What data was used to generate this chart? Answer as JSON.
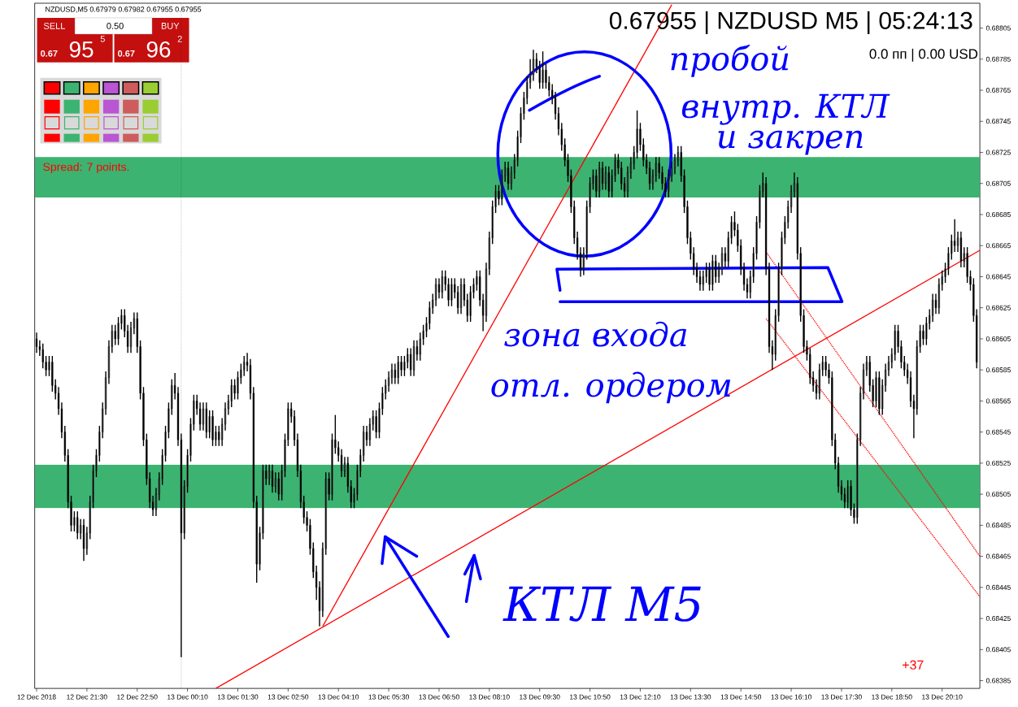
{
  "chart_data": {
    "type": "candlestick",
    "title": "0.67955 | NZDUSD M5 | 05:24:13",
    "annotations": [
      "NZDUSD,M5  0.67979 0.67982 0.67955 0.67955",
      "SELL",
      "0.50",
      "BUY",
      "0.67",
      "95",
      "5",
      "0.67",
      "96",
      "2",
      "Spread: 7 points.",
      "0.0 пп | 0.00 USD",
      "пробой",
      "внутр. КТЛ",
      "и закреп",
      "зона входа",
      "отл. ордером",
      "КТЛ М5",
      "+37"
    ],
    "x": [
      "2018-12-12T20:10",
      "2018-12-12T20:15",
      "2018-12-12T20:20",
      "2018-12-12T20:25",
      "2018-12-12T20:30",
      "2018-12-12T20:35",
      "2018-12-12T20:40",
      "2018-12-12T20:45",
      "2018-12-12T20:50",
      "2018-12-12T20:55",
      "2018-12-12T21:00",
      "2018-12-12T21:05",
      "2018-12-12T21:10",
      "2018-12-12T21:15",
      "2018-12-12T21:20",
      "2018-12-12T21:25",
      "2018-12-12T21:30",
      "2018-12-12T21:35",
      "2018-12-12T21:40",
      "2018-12-12T21:45",
      "2018-12-12T21:50",
      "2018-12-12T21:55",
      "2018-12-12T22:00",
      "2018-12-12T22:05",
      "2018-12-12T22:10",
      "2018-12-12T22:15",
      "2018-12-12T22:20",
      "2018-12-12T22:25",
      "2018-12-12T22:30",
      "2018-12-12T22:35",
      "2018-12-12T22:40",
      "2018-12-12T22:45",
      "2018-12-12T22:50",
      "2018-12-12T22:55",
      "2018-12-12T23:00",
      "2018-12-12T23:05",
      "2018-12-12T23:10",
      "2018-12-12T23:15",
      "2018-12-12T23:20",
      "2018-12-12T23:25",
      "2018-12-12T23:30",
      "2018-12-12T23:35",
      "2018-12-12T23:40",
      "2018-12-12T23:45",
      "2018-12-12T23:50",
      "2018-12-12T23:55",
      "2018-12-13T00:00",
      "2018-12-13T00:05",
      "2018-12-13T00:10",
      "2018-12-13T00:15",
      "2018-12-13T00:20",
      "2018-12-13T00:25",
      "2018-12-13T00:30",
      "2018-12-13T00:35",
      "2018-12-13T00:40",
      "2018-12-13T00:45",
      "2018-12-13T00:50",
      "2018-12-13T00:55",
      "2018-12-13T01:00",
      "2018-12-13T01:05",
      "2018-12-13T01:10",
      "2018-12-13T01:15",
      "2018-12-13T01:20",
      "2018-12-13T01:25",
      "2018-12-13T01:30",
      "2018-12-13T01:35",
      "2018-12-13T01:40",
      "2018-12-13T01:45",
      "2018-12-13T01:50",
      "2018-12-13T01:55",
      "2018-12-13T02:00",
      "2018-12-13T02:05",
      "2018-12-13T02:10",
      "2018-12-13T02:15",
      "2018-12-13T02:20",
      "2018-12-13T02:25",
      "2018-12-13T02:30",
      "2018-12-13T02:35",
      "2018-12-13T02:40",
      "2018-12-13T02:45",
      "2018-12-13T02:50",
      "2018-12-13T02:55",
      "2018-12-13T03:00",
      "2018-12-13T03:05",
      "2018-12-13T03:10",
      "2018-12-13T03:15",
      "2018-12-13T03:20",
      "2018-12-13T03:25",
      "2018-12-13T03:30",
      "2018-12-13T03:35",
      "2018-12-13T03:40",
      "2018-12-13T03:45",
      "2018-12-13T03:50",
      "2018-12-13T03:55",
      "2018-12-13T04:00",
      "2018-12-13T04:05",
      "2018-12-13T04:10",
      "2018-12-13T04:15",
      "2018-12-13T04:20",
      "2018-12-13T04:25",
      "2018-12-13T04:30",
      "2018-12-13T04:35",
      "2018-12-13T04:40",
      "2018-12-13T04:45",
      "2018-12-13T04:50",
      "2018-12-13T04:55",
      "2018-12-13T05:00",
      "2018-12-13T05:05",
      "2018-12-13T05:10",
      "2018-12-13T05:15",
      "2018-12-13T05:20",
      "2018-12-13T05:25",
      "2018-12-13T05:30",
      "2018-12-13T05:35",
      "2018-12-13T05:40",
      "2018-12-13T05:45",
      "2018-12-13T05:50",
      "2018-12-13T05:55",
      "2018-12-13T06:00",
      "2018-12-13T06:05",
      "2018-12-13T06:10",
      "2018-12-13T06:15",
      "2018-12-13T06:20",
      "2018-12-13T06:25",
      "2018-12-13T06:30",
      "2018-12-13T06:35",
      "2018-12-13T06:40",
      "2018-12-13T06:45",
      "2018-12-13T06:50",
      "2018-12-13T06:55",
      "2018-12-13T07:00",
      "2018-12-13T07:05",
      "2018-12-13T07:10",
      "2018-12-13T07:15",
      "2018-12-13T07:20",
      "2018-12-13T07:25",
      "2018-12-13T07:30",
      "2018-12-13T07:35",
      "2018-12-13T07:40",
      "2018-12-13T07:45",
      "2018-12-13T07:50",
      "2018-12-13T07:55",
      "2018-12-13T08:00",
      "2018-12-13T08:05",
      "2018-12-13T08:10",
      "2018-12-13T08:15",
      "2018-12-13T08:20",
      "2018-12-13T08:25",
      "2018-12-13T08:30",
      "2018-12-13T08:35",
      "2018-12-13T08:40",
      "2018-12-13T08:45",
      "2018-12-13T08:50",
      "2018-12-13T08:55",
      "2018-12-13T09:00",
      "2018-12-13T09:05",
      "2018-12-13T09:10",
      "2018-12-13T09:15",
      "2018-12-13T09:20",
      "2018-12-13T09:25",
      "2018-12-13T09:30",
      "2018-12-13T09:35",
      "2018-12-13T09:40",
      "2018-12-13T09:45",
      "2018-12-13T09:50",
      "2018-12-13T09:55",
      "2018-12-13T10:00",
      "2018-12-13T10:05",
      "2018-12-13T10:10",
      "2018-12-13T10:15",
      "2018-12-13T10:20",
      "2018-12-13T10:25",
      "2018-12-13T10:30",
      "2018-12-13T10:35",
      "2018-12-13T10:40",
      "2018-12-13T10:45",
      "2018-12-13T10:50",
      "2018-12-13T10:55",
      "2018-12-13T11:00",
      "2018-12-13T11:05",
      "2018-12-13T11:10",
      "2018-12-13T11:15",
      "2018-12-13T11:20",
      "2018-12-13T11:25",
      "2018-12-13T11:30",
      "2018-12-13T11:35",
      "2018-12-13T11:40",
      "2018-12-13T11:45",
      "2018-12-13T11:50",
      "2018-12-13T11:55",
      "2018-12-13T12:00",
      "2018-12-13T12:05",
      "2018-12-13T12:10",
      "2018-12-13T12:15",
      "2018-12-13T12:20",
      "2018-12-13T12:25",
      "2018-12-13T12:30",
      "2018-12-13T12:35",
      "2018-12-13T12:40",
      "2018-12-13T12:45",
      "2018-12-13T12:50",
      "2018-12-13T12:55",
      "2018-12-13T13:00",
      "2018-12-13T13:05",
      "2018-12-13T13:10",
      "2018-12-13T13:15",
      "2018-12-13T13:20",
      "2018-12-13T13:25",
      "2018-12-13T13:30",
      "2018-12-13T13:35",
      "2018-12-13T13:40",
      "2018-12-13T13:45",
      "2018-12-13T13:50",
      "2018-12-13T13:55",
      "2018-12-13T14:00",
      "2018-12-13T14:05",
      "2018-12-13T14:10",
      "2018-12-13T14:15",
      "2018-12-13T14:20",
      "2018-12-13T14:25",
      "2018-12-13T14:30",
      "2018-12-13T14:35",
      "2018-12-13T14:40",
      "2018-12-13T14:45",
      "2018-12-13T14:50",
      "2018-12-13T14:55",
      "2018-12-13T15:00",
      "2018-12-13T15:05",
      "2018-12-13T15:10",
      "2018-12-13T15:15",
      "2018-12-13T15:20",
      "2018-12-13T15:25",
      "2018-12-13T15:30",
      "2018-12-13T15:35",
      "2018-12-13T15:40",
      "2018-12-13T15:45",
      "2018-12-13T15:50",
      "2018-12-13T15:55",
      "2018-12-13T16:00",
      "2018-12-13T16:05",
      "2018-12-13T16:10",
      "2018-12-13T16:15",
      "2018-12-13T16:20",
      "2018-12-13T16:25",
      "2018-12-13T16:30",
      "2018-12-13T16:35",
      "2018-12-13T16:40",
      "2018-12-13T16:45",
      "2018-12-13T16:50",
      "2018-12-13T16:55",
      "2018-12-13T17:00",
      "2018-12-13T17:05",
      "2018-12-13T17:10",
      "2018-12-13T17:15",
      "2018-12-13T17:20",
      "2018-12-13T17:25",
      "2018-12-13T17:30",
      "2018-12-13T17:35",
      "2018-12-13T17:40",
      "2018-12-13T17:45",
      "2018-12-13T17:50",
      "2018-12-13T17:55",
      "2018-12-13T18:00",
      "2018-12-13T18:05",
      "2018-12-13T18:10",
      "2018-12-13T18:15",
      "2018-12-13T18:20",
      "2018-12-13T18:25",
      "2018-12-13T18:30",
      "2018-12-13T18:35",
      "2018-12-13T18:40",
      "2018-12-13T18:45",
      "2018-12-13T18:50",
      "2018-12-13T18:55",
      "2018-12-13T19:00",
      "2018-12-13T19:05",
      "2018-12-13T19:10",
      "2018-12-13T19:15",
      "2018-12-13T19:20",
      "2018-12-13T19:25",
      "2018-12-13T19:30",
      "2018-12-13T19:35",
      "2018-12-13T19:40",
      "2018-12-13T19:45",
      "2018-12-13T19:50",
      "2018-12-13T19:55",
      "2018-12-13T20:00",
      "2018-12-13T20:05",
      "2018-12-13T20:10",
      "2018-12-13T20:15",
      "2018-12-13T20:20",
      "2018-12-13T20:25",
      "2018-12-13T20:30",
      "2018-12-13T20:35",
      "2018-12-13T20:40",
      "2018-12-13T20:45",
      "2018-12-13T20:50",
      "2018-12-13T20:55",
      "2018-12-13T21:00",
      "2018-12-13T21:05"
    ],
    "ohlc": [
      [
        0.68605,
        0.68609,
        0.68596,
        0.686
      ],
      [
        0.686,
        0.68604,
        0.68594,
        0.68598
      ],
      [
        0.68598,
        0.68602,
        0.68586,
        0.6859
      ],
      [
        0.6859,
        0.68594,
        0.68581,
        0.68585
      ],
      [
        0.68585,
        0.68594,
        0.68581,
        0.6859
      ],
      [
        0.6859,
        0.68594,
        0.68571,
        0.68575
      ],
      [
        0.68575,
        0.68579,
        0.68566,
        0.6857
      ],
      [
        0.6857,
        0.68574,
        0.68556,
        0.6856
      ],
      [
        0.6856,
        0.68564,
        0.68541,
        0.68545
      ],
      [
        0.68545,
        0.68549,
        0.68526,
        0.6853
      ],
      [
        0.6853,
        0.68534,
        0.68496,
        0.685
      ],
      [
        0.685,
        0.68504,
        0.68481,
        0.68485
      ],
      [
        0.68485,
        0.68494,
        0.68481,
        0.6849
      ],
      [
        0.6849,
        0.68494,
        0.68476,
        0.6848
      ],
      [
        0.6848,
        0.68489,
        0.68476,
        0.68485
      ],
      [
        0.68485,
        0.68489,
        0.68462,
        0.6847
      ],
      [
        0.6847,
        0.68484,
        0.68466,
        0.6848
      ],
      [
        0.6848,
        0.68504,
        0.68476,
        0.685
      ],
      [
        0.685,
        0.68524,
        0.68496,
        0.6852
      ],
      [
        0.6852,
        0.68534,
        0.68516,
        0.6853
      ],
      [
        0.6853,
        0.68549,
        0.68526,
        0.68545
      ],
      [
        0.68545,
        0.68564,
        0.68541,
        0.6856
      ],
      [
        0.6856,
        0.68584,
        0.68556,
        0.6858
      ],
      [
        0.6858,
        0.68604,
        0.68576,
        0.686
      ],
      [
        0.686,
        0.68614,
        0.68596,
        0.6861
      ],
      [
        0.6861,
        0.68614,
        0.68601,
        0.68605
      ],
      [
        0.68605,
        0.68619,
        0.68601,
        0.68615
      ],
      [
        0.68615,
        0.68624,
        0.68611,
        0.6862
      ],
      [
        0.6862,
        0.68624,
        0.68606,
        0.6861
      ],
      [
        0.6861,
        0.68614,
        0.68596,
        0.686
      ],
      [
        0.686,
        0.68616,
        0.68596,
        0.68612
      ],
      [
        0.68612,
        0.68622,
        0.68608,
        0.68618
      ],
      [
        0.68618,
        0.68622,
        0.68596,
        0.686
      ],
      [
        0.686,
        0.68604,
        0.68566,
        0.6857
      ],
      [
        0.6857,
        0.68574,
        0.68536,
        0.6854
      ],
      [
        0.6854,
        0.68544,
        0.68511,
        0.68515
      ],
      [
        0.68515,
        0.68519,
        0.68496,
        0.685
      ],
      [
        0.685,
        0.68504,
        0.68491,
        0.68495
      ],
      [
        0.68495,
        0.68509,
        0.68491,
        0.68505
      ],
      [
        0.68505,
        0.68519,
        0.68501,
        0.68515
      ],
      [
        0.68515,
        0.68534,
        0.68511,
        0.6853
      ],
      [
        0.6853,
        0.68549,
        0.68526,
        0.68545
      ],
      [
        0.68545,
        0.68564,
        0.68541,
        0.6856
      ],
      [
        0.6856,
        0.68579,
        0.68556,
        0.68575
      ],
      [
        0.68575,
        0.68583,
        0.68566,
        0.6857
      ],
      [
        0.6857,
        0.68574,
        0.68536,
        0.6854
      ],
      [
        0.6854,
        0.68544,
        0.684,
        0.6848
      ],
      [
        0.6848,
        0.68514,
        0.68476,
        0.6851
      ],
      [
        0.6851,
        0.68534,
        0.68506,
        0.6853
      ],
      [
        0.6853,
        0.68554,
        0.68526,
        0.6855
      ],
      [
        0.6855,
        0.68569,
        0.68546,
        0.68565
      ],
      [
        0.68565,
        0.68569,
        0.68556,
        0.6856
      ],
      [
        0.6856,
        0.68564,
        0.68546,
        0.6855
      ],
      [
        0.6855,
        0.68564,
        0.68546,
        0.6856
      ],
      [
        0.6856,
        0.68564,
        0.68541,
        0.68545
      ],
      [
        0.68545,
        0.68559,
        0.68541,
        0.68555
      ],
      [
        0.68555,
        0.68559,
        0.68536,
        0.6854
      ],
      [
        0.6854,
        0.68549,
        0.68536,
        0.68545
      ],
      [
        0.68545,
        0.68549,
        0.68536,
        0.6854
      ],
      [
        0.6854,
        0.68554,
        0.68536,
        0.6855
      ],
      [
        0.6855,
        0.68564,
        0.68546,
        0.6856
      ],
      [
        0.6856,
        0.68569,
        0.68556,
        0.68565
      ],
      [
        0.68565,
        0.68579,
        0.68561,
        0.68575
      ],
      [
        0.68575,
        0.68579,
        0.68566,
        0.6857
      ],
      [
        0.6857,
        0.68584,
        0.68566,
        0.6858
      ],
      [
        0.6858,
        0.68589,
        0.68576,
        0.68585
      ],
      [
        0.68585,
        0.68594,
        0.68581,
        0.6859
      ],
      [
        0.6859,
        0.68596,
        0.68584,
        0.68588
      ],
      [
        0.68588,
        0.68592,
        0.68566,
        0.6857
      ],
      [
        0.6857,
        0.68574,
        0.68496,
        0.685
      ],
      [
        0.685,
        0.68504,
        0.68448,
        0.6846
      ],
      [
        0.6846,
        0.68484,
        0.68456,
        0.6848
      ],
      [
        0.6848,
        0.68524,
        0.68476,
        0.6852
      ],
      [
        0.6852,
        0.68524,
        0.68511,
        0.68515
      ],
      [
        0.68515,
        0.68524,
        0.68511,
        0.6852
      ],
      [
        0.6852,
        0.68524,
        0.68506,
        0.6851
      ],
      [
        0.6851,
        0.68519,
        0.68506,
        0.68515
      ],
      [
        0.68515,
        0.68519,
        0.68501,
        0.68505
      ],
      [
        0.68505,
        0.68524,
        0.68501,
        0.6852
      ],
      [
        0.6852,
        0.68544,
        0.68516,
        0.6854
      ],
      [
        0.6854,
        0.68564,
        0.68536,
        0.6856
      ],
      [
        0.6856,
        0.68564,
        0.68551,
        0.68555
      ],
      [
        0.68555,
        0.68559,
        0.68536,
        0.6854
      ],
      [
        0.6854,
        0.68544,
        0.68516,
        0.6852
      ],
      [
        0.6852,
        0.68524,
        0.68496,
        0.685
      ],
      [
        0.685,
        0.68504,
        0.68486,
        0.6849
      ],
      [
        0.6849,
        0.68494,
        0.68481,
        0.68485
      ],
      [
        0.68485,
        0.68489,
        0.68466,
        0.6847
      ],
      [
        0.6847,
        0.68474,
        0.68451,
        0.68455
      ],
      [
        0.68455,
        0.68459,
        0.68437,
        0.68445
      ],
      [
        0.68445,
        0.68449,
        0.6842,
        0.6843
      ],
      [
        0.6843,
        0.68474,
        0.68426,
        0.6847
      ],
      [
        0.6847,
        0.68519,
        0.68466,
        0.68515
      ],
      [
        0.68515,
        0.68519,
        0.68501,
        0.68505
      ],
      [
        0.68505,
        0.68544,
        0.68501,
        0.6854
      ],
      [
        0.6854,
        0.68556,
        0.68531,
        0.68535
      ],
      [
        0.68535,
        0.68539,
        0.68526,
        0.6853
      ],
      [
        0.6853,
        0.68534,
        0.68516,
        0.6852
      ],
      [
        0.6852,
        0.68529,
        0.68516,
        0.68525
      ],
      [
        0.68525,
        0.68529,
        0.68506,
        0.6851
      ],
      [
        0.6851,
        0.68514,
        0.68496,
        0.685
      ],
      [
        0.685,
        0.68509,
        0.68496,
        0.68505
      ],
      [
        0.68505,
        0.68524,
        0.68501,
        0.6852
      ],
      [
        0.6852,
        0.68534,
        0.68516,
        0.6853
      ],
      [
        0.6853,
        0.68549,
        0.68526,
        0.68545
      ],
      [
        0.68545,
        0.68549,
        0.68536,
        0.6854
      ],
      [
        0.6854,
        0.68554,
        0.68536,
        0.6855
      ],
      [
        0.6855,
        0.68559,
        0.68546,
        0.68555
      ],
      [
        0.68555,
        0.68559,
        0.68541,
        0.68545
      ],
      [
        0.68545,
        0.68564,
        0.68541,
        0.6856
      ],
      [
        0.6856,
        0.68574,
        0.68556,
        0.6857
      ],
      [
        0.6857,
        0.68579,
        0.68566,
        0.68575
      ],
      [
        0.68575,
        0.68584,
        0.68571,
        0.6858
      ],
      [
        0.6858,
        0.68589,
        0.68576,
        0.68585
      ],
      [
        0.68585,
        0.68589,
        0.68576,
        0.6858
      ],
      [
        0.6858,
        0.68594,
        0.68576,
        0.6859
      ],
      [
        0.6859,
        0.68594,
        0.68581,
        0.68585
      ],
      [
        0.68585,
        0.68594,
        0.68581,
        0.6859
      ],
      [
        0.6859,
        0.68599,
        0.68586,
        0.68595
      ],
      [
        0.68595,
        0.68599,
        0.68581,
        0.68585
      ],
      [
        0.68585,
        0.68604,
        0.68581,
        0.686
      ],
      [
        0.686,
        0.68604,
        0.68591,
        0.68595
      ],
      [
        0.68595,
        0.68609,
        0.68591,
        0.68605
      ],
      [
        0.68605,
        0.68614,
        0.68601,
        0.6861
      ],
      [
        0.6861,
        0.68619,
        0.68606,
        0.68615
      ],
      [
        0.68615,
        0.68629,
        0.68611,
        0.68625
      ],
      [
        0.68625,
        0.68634,
        0.68621,
        0.6863
      ],
      [
        0.6863,
        0.68644,
        0.68626,
        0.6864
      ],
      [
        0.6864,
        0.68644,
        0.68631,
        0.68635
      ],
      [
        0.68635,
        0.68649,
        0.68631,
        0.68645
      ],
      [
        0.68645,
        0.68649,
        0.68636,
        0.6864
      ],
      [
        0.6864,
        0.68644,
        0.68626,
        0.6863
      ],
      [
        0.6863,
        0.68644,
        0.68626,
        0.6864
      ],
      [
        0.6864,
        0.68644,
        0.68631,
        0.68635
      ],
      [
        0.68635,
        0.68639,
        0.68621,
        0.68625
      ],
      [
        0.68625,
        0.68644,
        0.68621,
        0.6864
      ],
      [
        0.6864,
        0.68644,
        0.68626,
        0.6863
      ],
      [
        0.6863,
        0.68634,
        0.68616,
        0.6862
      ],
      [
        0.6862,
        0.68639,
        0.68616,
        0.68635
      ],
      [
        0.68635,
        0.68644,
        0.68631,
        0.6864
      ],
      [
        0.6864,
        0.68649,
        0.68636,
        0.68645
      ],
      [
        0.68645,
        0.68649,
        0.68626,
        0.6863
      ],
      [
        0.6863,
        0.68634,
        0.6861,
        0.6862
      ],
      [
        0.6862,
        0.68654,
        0.68616,
        0.6865
      ],
      [
        0.6865,
        0.68674,
        0.68646,
        0.6867
      ],
      [
        0.6867,
        0.68694,
        0.68666,
        0.6869
      ],
      [
        0.6869,
        0.68704,
        0.68686,
        0.687
      ],
      [
        0.687,
        0.68704,
        0.68691,
        0.68695
      ],
      [
        0.68695,
        0.68714,
        0.68691,
        0.6871
      ],
      [
        0.6871,
        0.68719,
        0.68706,
        0.68715
      ],
      [
        0.68715,
        0.68719,
        0.68701,
        0.68705
      ],
      [
        0.68705,
        0.68716,
        0.68701,
        0.68712
      ],
      [
        0.68712,
        0.68724,
        0.68708,
        0.6872
      ],
      [
        0.6872,
        0.68739,
        0.68716,
        0.68735
      ],
      [
        0.68735,
        0.68754,
        0.68731,
        0.6875
      ],
      [
        0.6875,
        0.68764,
        0.68746,
        0.6876
      ],
      [
        0.6876,
        0.68774,
        0.68756,
        0.6877
      ],
      [
        0.6877,
        0.68785,
        0.68766,
        0.68775
      ],
      [
        0.68775,
        0.68791,
        0.68771,
        0.68785
      ],
      [
        0.68785,
        0.68789,
        0.68776,
        0.6878
      ],
      [
        0.6878,
        0.68784,
        0.68766,
        0.6877
      ],
      [
        0.6877,
        0.6879,
        0.68766,
        0.68778
      ],
      [
        0.68778,
        0.68782,
        0.68766,
        0.6877
      ],
      [
        0.6877,
        0.68774,
        0.68761,
        0.68765
      ],
      [
        0.68765,
        0.68769,
        0.68756,
        0.6876
      ],
      [
        0.6876,
        0.68764,
        0.68746,
        0.6875
      ],
      [
        0.6875,
        0.68754,
        0.68736,
        0.6874
      ],
      [
        0.6874,
        0.68744,
        0.68726,
        0.6873
      ],
      [
        0.6873,
        0.68734,
        0.68716,
        0.6872
      ],
      [
        0.6872,
        0.68724,
        0.68706,
        0.6871
      ],
      [
        0.6871,
        0.68714,
        0.68686,
        0.6869
      ],
      [
        0.6869,
        0.68694,
        0.68666,
        0.6867
      ],
      [
        0.6867,
        0.68674,
        0.68656,
        0.6866
      ],
      [
        0.6866,
        0.68664,
        0.68645,
        0.6865
      ],
      [
        0.6865,
        0.68664,
        0.68646,
        0.6866
      ],
      [
        0.6866,
        0.68694,
        0.68656,
        0.6869
      ],
      [
        0.6869,
        0.68709,
        0.68686,
        0.68705
      ],
      [
        0.68705,
        0.68714,
        0.68701,
        0.6871
      ],
      [
        0.6871,
        0.68714,
        0.68696,
        0.687
      ],
      [
        0.687,
        0.68719,
        0.68696,
        0.68715
      ],
      [
        0.68715,
        0.68719,
        0.68701,
        0.68705
      ],
      [
        0.68705,
        0.68716,
        0.68701,
        0.68712
      ],
      [
        0.68712,
        0.68716,
        0.68696,
        0.687
      ],
      [
        0.687,
        0.68714,
        0.68696,
        0.6871
      ],
      [
        0.6871,
        0.68724,
        0.68706,
        0.6872
      ],
      [
        0.6872,
        0.68724,
        0.68711,
        0.68715
      ],
      [
        0.68715,
        0.68719,
        0.68701,
        0.68705
      ],
      [
        0.68705,
        0.68709,
        0.68696,
        0.687
      ],
      [
        0.687,
        0.68716,
        0.68696,
        0.68712
      ],
      [
        0.68712,
        0.68722,
        0.68708,
        0.68718
      ],
      [
        0.68718,
        0.68729,
        0.68714,
        0.68725
      ],
      [
        0.68725,
        0.68752,
        0.68721,
        0.6874
      ],
      [
        0.6874,
        0.68744,
        0.68726,
        0.6873
      ],
      [
        0.6873,
        0.68734,
        0.68716,
        0.6872
      ],
      [
        0.6872,
        0.68724,
        0.68711,
        0.68715
      ],
      [
        0.68715,
        0.68719,
        0.68701,
        0.68705
      ],
      [
        0.68705,
        0.68714,
        0.68701,
        0.6871
      ],
      [
        0.6871,
        0.68722,
        0.68706,
        0.68718
      ],
      [
        0.68718,
        0.68722,
        0.68708,
        0.68712
      ],
      [
        0.68712,
        0.68716,
        0.68701,
        0.68705
      ],
      [
        0.68705,
        0.68709,
        0.68696,
        0.687
      ],
      [
        0.687,
        0.68714,
        0.68696,
        0.6871
      ],
      [
        0.6871,
        0.68719,
        0.68706,
        0.68715
      ],
      [
        0.68715,
        0.68724,
        0.68711,
        0.6872
      ],
      [
        0.6872,
        0.68729,
        0.68716,
        0.68725
      ],
      [
        0.68725,
        0.68729,
        0.68706,
        0.6871
      ],
      [
        0.6871,
        0.68714,
        0.68686,
        0.6869
      ],
      [
        0.6869,
        0.68694,
        0.68666,
        0.6867
      ],
      [
        0.6867,
        0.68674,
        0.68656,
        0.6866
      ],
      [
        0.6866,
        0.68664,
        0.68646,
        0.6865
      ],
      [
        0.6865,
        0.68654,
        0.68641,
        0.68645
      ],
      [
        0.68645,
        0.68649,
        0.68636,
        0.6864
      ],
      [
        0.6864,
        0.68649,
        0.68636,
        0.68645
      ],
      [
        0.68645,
        0.68654,
        0.68641,
        0.6865
      ],
      [
        0.6865,
        0.68654,
        0.68636,
        0.6864
      ],
      [
        0.6864,
        0.68659,
        0.68636,
        0.68655
      ],
      [
        0.68655,
        0.68659,
        0.68641,
        0.68645
      ],
      [
        0.68645,
        0.68654,
        0.68641,
        0.6865
      ],
      [
        0.6865,
        0.68664,
        0.68646,
        0.6866
      ],
      [
        0.6866,
        0.68664,
        0.68651,
        0.68655
      ],
      [
        0.68655,
        0.68674,
        0.68651,
        0.6867
      ],
      [
        0.6867,
        0.68684,
        0.68666,
        0.6868
      ],
      [
        0.6868,
        0.68687,
        0.68671,
        0.68675
      ],
      [
        0.68675,
        0.68679,
        0.68661,
        0.68665
      ],
      [
        0.68665,
        0.68669,
        0.68646,
        0.6865
      ],
      [
        0.6865,
        0.68654,
        0.68636,
        0.6864
      ],
      [
        0.6864,
        0.68644,
        0.68631,
        0.68635
      ],
      [
        0.68635,
        0.68649,
        0.68631,
        0.68645
      ],
      [
        0.68645,
        0.68664,
        0.68641,
        0.6866
      ],
      [
        0.6866,
        0.68684,
        0.68656,
        0.6868
      ],
      [
        0.6868,
        0.68704,
        0.68676,
        0.687
      ],
      [
        0.687,
        0.68712,
        0.68696,
        0.68705
      ],
      [
        0.68705,
        0.68709,
        0.68646,
        0.6865
      ],
      [
        0.6865,
        0.68654,
        0.68596,
        0.686
      ],
      [
        0.686,
        0.68604,
        0.68585,
        0.68595
      ],
      [
        0.68595,
        0.68624,
        0.68591,
        0.6862
      ],
      [
        0.6862,
        0.68654,
        0.68616,
        0.6865
      ],
      [
        0.6865,
        0.68674,
        0.68646,
        0.6867
      ],
      [
        0.6867,
        0.68684,
        0.68666,
        0.6868
      ],
      [
        0.6868,
        0.68694,
        0.68676,
        0.6869
      ],
      [
        0.6869,
        0.68704,
        0.68686,
        0.687
      ],
      [
        0.687,
        0.68712,
        0.68696,
        0.68705
      ],
      [
        0.68705,
        0.68709,
        0.68656,
        0.6866
      ],
      [
        0.6866,
        0.68664,
        0.68616,
        0.6862
      ],
      [
        0.6862,
        0.68624,
        0.68596,
        0.686
      ],
      [
        0.686,
        0.68604,
        0.68591,
        0.68595
      ],
      [
        0.68595,
        0.68599,
        0.68576,
        0.6858
      ],
      [
        0.6858,
        0.68584,
        0.68571,
        0.68575
      ],
      [
        0.68575,
        0.68579,
        0.68566,
        0.6857
      ],
      [
        0.6857,
        0.68589,
        0.68566,
        0.68585
      ],
      [
        0.68585,
        0.68594,
        0.68581,
        0.6859
      ],
      [
        0.6859,
        0.68594,
        0.68581,
        0.68585
      ],
      [
        0.68585,
        0.68589,
        0.68576,
        0.6858
      ],
      [
        0.6858,
        0.68584,
        0.68536,
        0.6854
      ],
      [
        0.6854,
        0.68544,
        0.68521,
        0.68525
      ],
      [
        0.68525,
        0.68529,
        0.68506,
        0.6851
      ],
      [
        0.6851,
        0.68514,
        0.68501,
        0.68505
      ],
      [
        0.68505,
        0.68509,
        0.68496,
        0.685
      ],
      [
        0.685,
        0.68514,
        0.68496,
        0.6851
      ],
      [
        0.6851,
        0.68514,
        0.68491,
        0.68495
      ],
      [
        0.68495,
        0.68499,
        0.68486,
        0.6849
      ],
      [
        0.6849,
        0.68544,
        0.68486,
        0.6854
      ],
      [
        0.6854,
        0.68574,
        0.68536,
        0.6857
      ],
      [
        0.6857,
        0.68589,
        0.68566,
        0.68585
      ],
      [
        0.68585,
        0.68594,
        0.68581,
        0.6859
      ],
      [
        0.6859,
        0.68594,
        0.68571,
        0.68575
      ],
      [
        0.68575,
        0.68579,
        0.68561,
        0.68565
      ],
      [
        0.68565,
        0.68584,
        0.68561,
        0.6858
      ],
      [
        0.6858,
        0.68584,
        0.68556,
        0.6856
      ],
      [
        0.6856,
        0.68579,
        0.68556,
        0.68575
      ],
      [
        0.68575,
        0.68589,
        0.68571,
        0.68585
      ],
      [
        0.68585,
        0.68594,
        0.68581,
        0.6859
      ],
      [
        0.6859,
        0.68599,
        0.68586,
        0.68595
      ],
      [
        0.68595,
        0.68614,
        0.68591,
        0.6861
      ],
      [
        0.6861,
        0.68614,
        0.68596,
        0.686
      ],
      [
        0.686,
        0.68604,
        0.68586,
        0.6859
      ],
      [
        0.6859,
        0.68594,
        0.68581,
        0.68585
      ],
      [
        0.68585,
        0.68589,
        0.68576,
        0.6858
      ],
      [
        0.6858,
        0.68584,
        0.68561,
        0.68565
      ],
      [
        0.68565,
        0.68569,
        0.68541,
        0.6856
      ],
      [
        0.6856,
        0.68604,
        0.68556,
        0.686
      ],
      [
        0.686,
        0.68614,
        0.68596,
        0.6861
      ],
      [
        0.6861,
        0.68614,
        0.68601,
        0.68605
      ],
      [
        0.68605,
        0.68619,
        0.68601,
        0.68615
      ],
      [
        0.68615,
        0.68624,
        0.68611,
        0.6862
      ],
      [
        0.6862,
        0.68634,
        0.68616,
        0.6863
      ],
      [
        0.6863,
        0.68634,
        0.68621,
        0.68625
      ],
      [
        0.68625,
        0.68644,
        0.68621,
        0.6864
      ],
      [
        0.6864,
        0.68649,
        0.68636,
        0.68645
      ],
      [
        0.68645,
        0.68654,
        0.68641,
        0.6865
      ],
      [
        0.6865,
        0.68664,
        0.68646,
        0.6866
      ],
      [
        0.6866,
        0.68672,
        0.68656,
        0.68668
      ],
      [
        0.68668,
        0.68682,
        0.68661,
        0.68665
      ],
      [
        0.68665,
        0.68674,
        0.68661,
        0.6867
      ],
      [
        0.6867,
        0.68674,
        0.68651,
        0.68655
      ],
      [
        0.68655,
        0.68664,
        0.68651,
        0.6866
      ],
      [
        0.6866,
        0.68664,
        0.68641,
        0.68645
      ],
      [
        0.68645,
        0.68649,
        0.68636,
        0.6864
      ],
      [
        0.6864,
        0.68644,
        0.68616,
        0.6862
      ],
      [
        0.6862,
        0.68624,
        0.68586,
        0.6859
      ]
    ],
    "series": [
      {
        "type": "line",
        "color": "#ff0000",
        "x": [
          "2018-12-13T03:45",
          "2018-12-13T13:00"
        ],
        "values": [
          0.6842,
          0.6882
        ]
      },
      {
        "type": "line",
        "color": "#ff0000",
        "x": [
          "2018-12-13T00:55",
          "2018-12-13T21:10"
        ],
        "values": [
          0.6838,
          0.68662
        ]
      },
      {
        "type": "line",
        "color": "#ff0000",
        "line_style": "dotted",
        "x": [
          "2018-12-13T15:30",
          "2018-12-13T21:10"
        ],
        "values": [
          0.68661,
          0.68465
        ]
      },
      {
        "type": "line",
        "color": "#ff0000",
        "line_style": "dotted",
        "x": [
          "2018-12-13T15:30",
          "2018-12-13T21:10"
        ],
        "values": [
          0.68618,
          0.68439
        ]
      }
    ],
    "bands": [
      {
        "axis": "y",
        "from": 0.68696,
        "to": 0.68722,
        "color": "#3cb371"
      },
      {
        "axis": "y",
        "from": 0.68496,
        "to": 0.68524,
        "color": "#3cb371"
      }
    ],
    "ref_lines": [
      {
        "axis": "x",
        "value": "2018-12-13T00:00",
        "line_style": "dotted"
      }
    ],
    "xlim": [
      "2018-12-12T20:07",
      "2018-12-13T21:10"
    ],
    "ylim": [
      0.6838,
      0.68821
    ],
    "xticks": [
      {
        "value": "2018-12-12T20:10",
        "label": "12 Dec 2018"
      },
      {
        "value": "2018-12-12T21:30",
        "label": "12 Dec 21:30"
      },
      {
        "value": "2018-12-12T22:50",
        "label": "12 Dec 22:50"
      },
      {
        "value": "2018-12-13T00:10",
        "label": "13 Dec 00:10"
      },
      {
        "value": "2018-12-13T01:30",
        "label": "13 Dec 01:30"
      },
      {
        "value": "2018-12-13T02:50",
        "label": "13 Dec 02:50"
      },
      {
        "value": "2018-12-13T04:10",
        "label": "13 Dec 04:10"
      },
      {
        "value": "2018-12-13T05:30",
        "label": "13 Dec 05:30"
      },
      {
        "value": "2018-12-13T06:50",
        "label": "13 Dec 06:50"
      },
      {
        "value": "2018-12-13T08:10",
        "label": "13 Dec 08:10"
      },
      {
        "value": "2018-12-13T09:30",
        "label": "13 Dec 09:30"
      },
      {
        "value": "2018-12-13T10:50",
        "label": "13 Dec 10:50"
      },
      {
        "value": "2018-12-13T12:10",
        "label": "13 Dec 12:10"
      },
      {
        "value": "2018-12-13T13:30",
        "label": "13 Dec 13:30"
      },
      {
        "value": "2018-12-13T14:50",
        "label": "13 Dec 14:50"
      },
      {
        "value": "2018-12-13T16:10",
        "label": "13 Dec 16:10"
      },
      {
        "value": "2018-12-13T17:30",
        "label": "13 Dec 17:30"
      },
      {
        "value": "2018-12-13T18:50",
        "label": "13 Dec 18:50"
      },
      {
        "value": "2018-12-13T20:10",
        "label": "13 Dec 20:10"
      }
    ],
    "yticks": [
      0.68805,
      0.68785,
      0.68765,
      0.68745,
      0.68725,
      0.68705,
      0.68685,
      0.68665,
      0.68645,
      0.68625,
      0.68605,
      0.68585,
      0.68565,
      0.68545,
      0.68525,
      0.68505,
      0.68485,
      0.68465,
      0.68445,
      0.68425,
      0.68405,
      0.68385
    ]
  }
}
